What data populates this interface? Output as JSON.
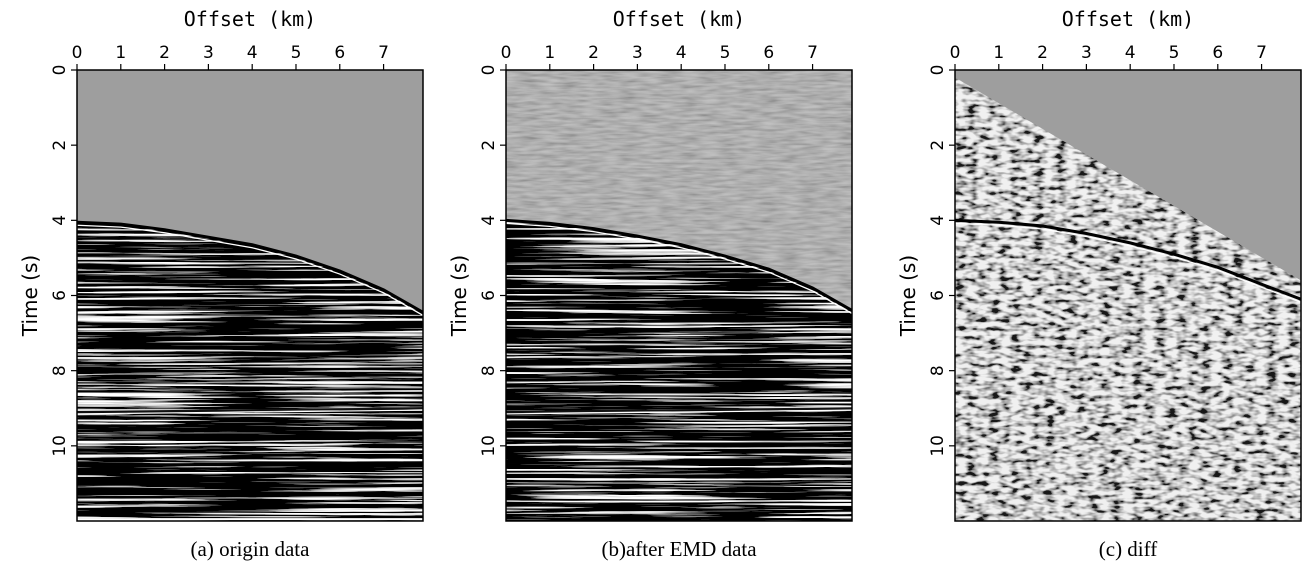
{
  "chart_data": [
    {
      "type": "heatmap",
      "caption": "(a)  origin data",
      "xlabel": "Offset (km)",
      "ylabel": "Time (s)",
      "xlim": [
        0,
        7.9
      ],
      "ylim": [
        0,
        12
      ],
      "x_ticks": [
        0,
        1,
        2,
        3,
        4,
        5,
        6,
        7
      ],
      "y_ticks": [
        0,
        2,
        4,
        6,
        8,
        10
      ],
      "first_arrival": {
        "x": [
          0,
          1,
          2,
          3,
          4,
          5,
          6,
          7,
          7.9
        ],
        "time": [
          4.05,
          4.1,
          4.25,
          4.45,
          4.65,
          4.95,
          5.35,
          5.85,
          6.45
        ]
      },
      "content": "data below first arrival only"
    },
    {
      "type": "heatmap",
      "caption": "(b)after EMD data",
      "xlabel": "Offset (km)",
      "ylabel": "Time (s)",
      "xlim": [
        0,
        7.9
      ],
      "ylim": [
        0,
        12
      ],
      "x_ticks": [
        0,
        1,
        2,
        3,
        4,
        5,
        6,
        7
      ],
      "y_ticks": [
        0,
        2,
        4,
        6,
        8,
        10
      ],
      "first_arrival": {
        "x": [
          0,
          1,
          2,
          3,
          4,
          5,
          6,
          7,
          7.9
        ],
        "time": [
          4.0,
          4.08,
          4.22,
          4.42,
          4.65,
          4.95,
          5.3,
          5.8,
          6.4
        ]
      },
      "content": "data below first arrival with faint noise above"
    },
    {
      "type": "heatmap",
      "caption": "(c) diff",
      "xlabel": "Offset (km)",
      "ylabel": "Time (s)",
      "xlim": [
        0,
        7.9
      ],
      "ylim": [
        0,
        12
      ],
      "x_ticks": [
        0,
        1,
        2,
        3,
        4,
        5,
        6,
        7
      ],
      "y_ticks": [
        0,
        2,
        4,
        6,
        8,
        10
      ],
      "first_arrival": {
        "x": [
          0,
          1,
          2,
          3,
          4,
          5,
          6,
          7,
          7.9
        ],
        "time": [
          4.0,
          4.05,
          4.15,
          4.35,
          4.6,
          4.9,
          5.25,
          5.7,
          6.1
        ]
      },
      "content": "difference noise with diagonal boundary"
    }
  ]
}
